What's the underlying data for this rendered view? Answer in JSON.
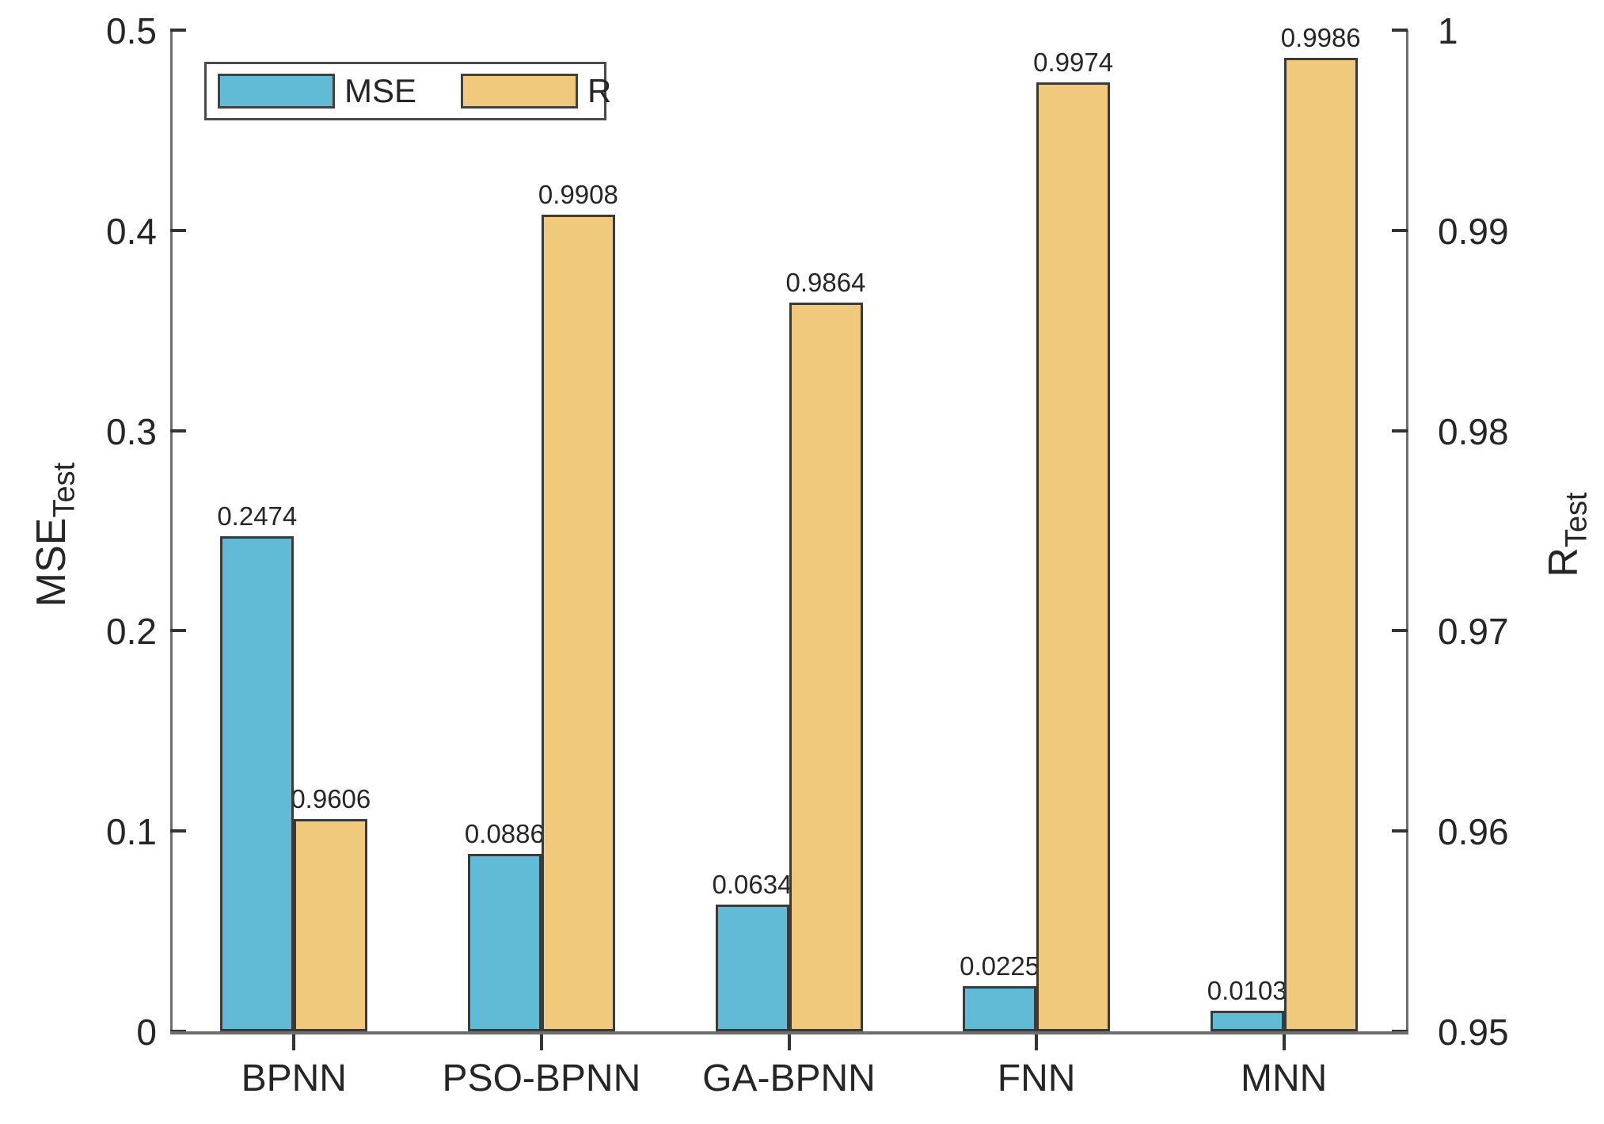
{
  "chart_data": {
    "type": "bar",
    "title": "",
    "categories": [
      "BPNN",
      "PSO-BPNN",
      "GA-BPNN",
      "FNN",
      "MNN"
    ],
    "series": [
      {
        "name": "MSE",
        "axis": "left",
        "color": "#62BBD6",
        "values": [
          0.2474,
          0.0886,
          0.0634,
          0.0225,
          0.0103
        ],
        "labels": [
          "0.2474",
          "0.0886",
          "0.0634",
          "0.0225",
          "0.0103"
        ]
      },
      {
        "name": "R",
        "axis": "right",
        "color": "#F0C97D",
        "values": [
          0.9606,
          0.9908,
          0.9864,
          0.9974,
          0.9986
        ],
        "labels": [
          "0.9606",
          "0.9908",
          "0.9864",
          "0.9974",
          "0.9986"
        ]
      }
    ],
    "left_axis": {
      "label_main": "MSE",
      "label_sub": "Test",
      "min": 0,
      "max": 0.5,
      "ticks": [
        "0",
        "0.1",
        "0.2",
        "0.3",
        "0.4",
        "0.5"
      ]
    },
    "right_axis": {
      "label_main": "R",
      "label_sub": "Test",
      "min": 0.95,
      "max": 1,
      "ticks": [
        "0.95",
        "0.96",
        "0.97",
        "0.98",
        "0.99",
        "1"
      ]
    },
    "legend": [
      "MSE",
      "R"
    ],
    "layout": {
      "grid": false,
      "legend_position": "top-left-inside",
      "bar_edge_color": "#3a3a3a",
      "axis_color": "#6e6e6e",
      "text_color": "#262626",
      "background": "#ffffff"
    }
  }
}
